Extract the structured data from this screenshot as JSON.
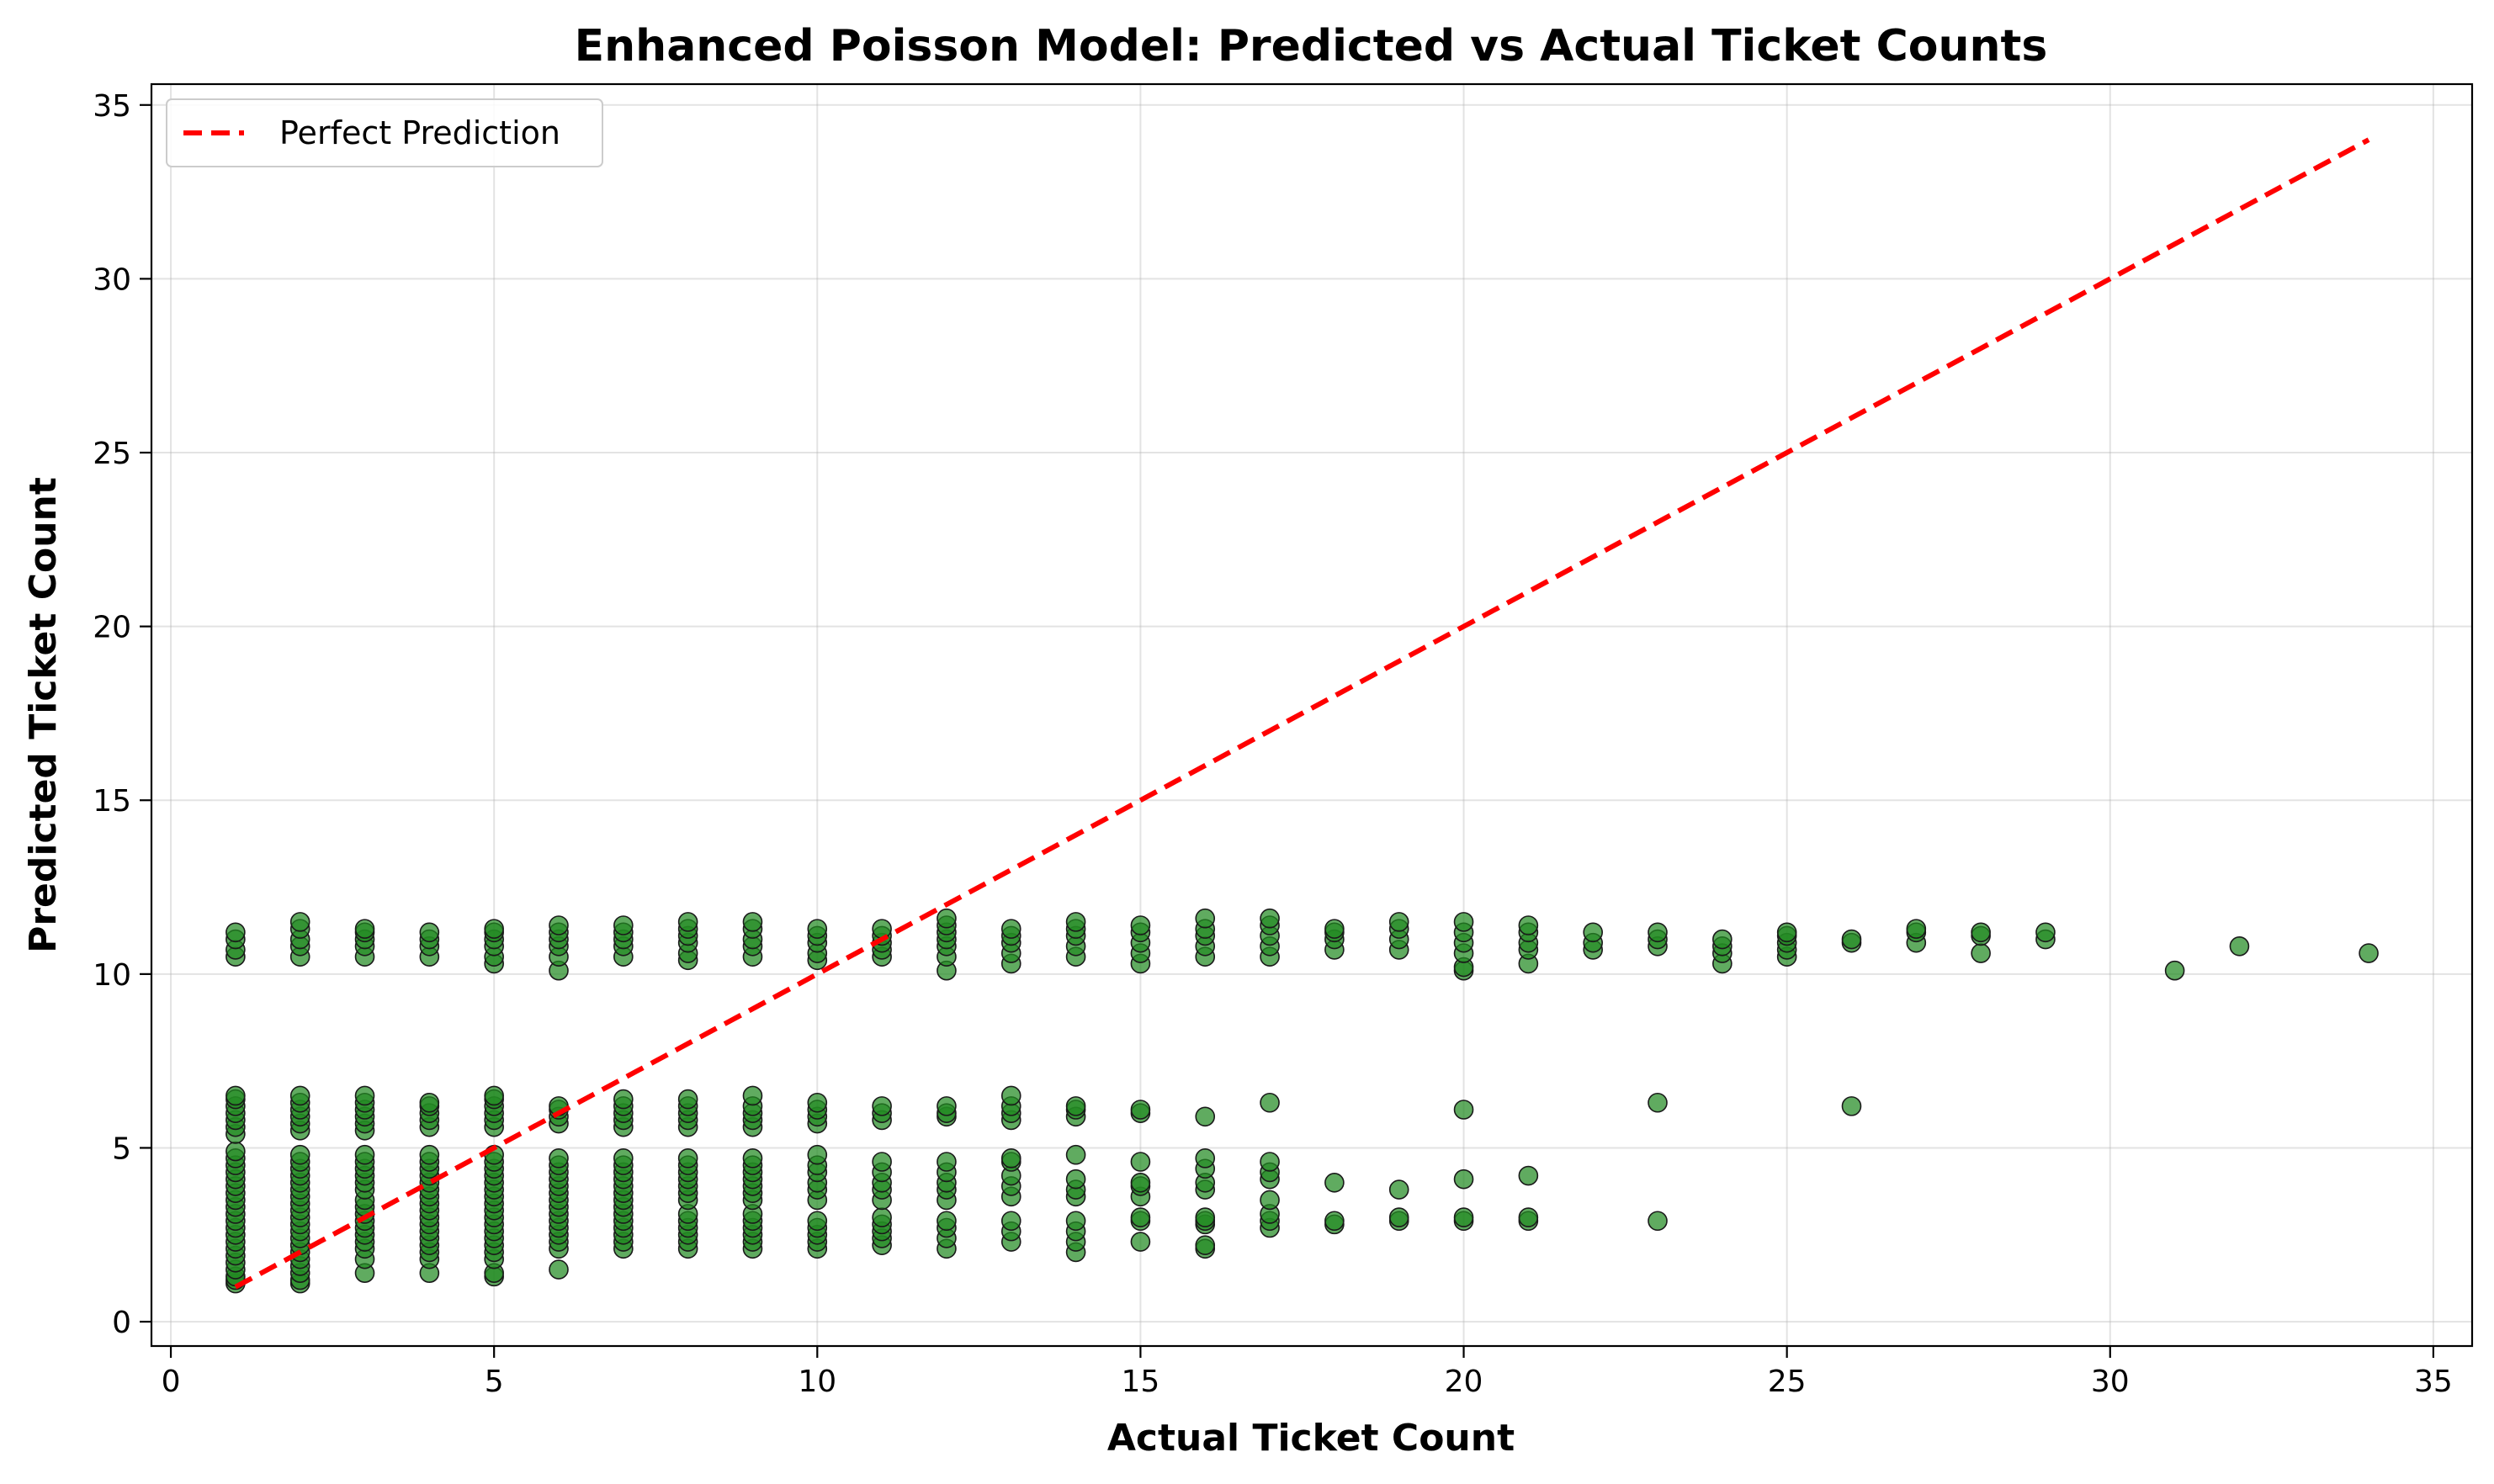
{
  "chart_data": {
    "type": "scatter",
    "title": "Enhanced Poisson Model: Predicted vs Actual Ticket Counts",
    "xlabel": "Actual Ticket Count",
    "ylabel": "Predicted Ticket Count",
    "xlim": [
      -0.3,
      35.6
    ],
    "ylim": [
      -0.7,
      35.6
    ],
    "xticks": [
      0,
      5,
      10,
      15,
      20,
      25,
      30,
      35
    ],
    "yticks": [
      0,
      5,
      10,
      15,
      20,
      25,
      30,
      35
    ],
    "grid": true,
    "legend_position": "top-left",
    "series": [
      {
        "name": "Perfect Prediction",
        "kind": "line",
        "style": "dashed",
        "color": "#ff0000",
        "x": [
          1,
          34
        ],
        "y": [
          1,
          34
        ]
      },
      {
        "kind": "scatter",
        "color": "#228b22",
        "edge_color": "#1a1a1a",
        "groups": [
          {
            "x": 1,
            "y": [
              1.1,
              1.2,
              1.3,
              1.5,
              1.7,
              1.9,
              2.1,
              2.3,
              2.5,
              2.7,
              2.9,
              3.1,
              3.3,
              3.5,
              3.7,
              3.9,
              4.1,
              4.3,
              4.5,
              4.7,
              4.9,
              5.4,
              5.6,
              5.8,
              6.0,
              6.2,
              6.4,
              6.5,
              10.5,
              10.7,
              11.0,
              11.2
            ]
          },
          {
            "x": 2,
            "y": [
              1.1,
              1.2,
              1.4,
              1.6,
              1.8,
              2.0,
              2.2,
              2.4,
              2.6,
              2.8,
              3.0,
              3.2,
              3.4,
              3.6,
              3.8,
              4.0,
              4.2,
              4.4,
              4.6,
              4.8,
              5.5,
              5.7,
              5.9,
              6.1,
              6.3,
              6.5,
              10.5,
              10.8,
              11.0,
              11.3,
              11.5
            ]
          },
          {
            "x": 3,
            "y": [
              1.4,
              1.8,
              2.1,
              2.3,
              2.5,
              2.7,
              2.9,
              3.1,
              3.3,
              3.5,
              3.8,
              4.0,
              4.2,
              4.4,
              4.6,
              4.8,
              5.5,
              5.7,
              5.9,
              6.1,
              6.3,
              6.5,
              10.5,
              10.8,
              11.0,
              11.2,
              11.3
            ]
          },
          {
            "x": 4,
            "y": [
              1.4,
              1.8,
              2.0,
              2.2,
              2.4,
              2.6,
              2.8,
              3.0,
              3.2,
              3.4,
              3.6,
              3.8,
              4.0,
              4.2,
              4.4,
              4.6,
              4.8,
              5.6,
              5.8,
              6.0,
              6.2,
              6.3,
              10.5,
              10.8,
              11.0,
              11.2
            ]
          },
          {
            "x": 5,
            "y": [
              1.3,
              1.4,
              1.8,
              2.0,
              2.2,
              2.4,
              2.6,
              2.8,
              3.0,
              3.2,
              3.4,
              3.6,
              3.8,
              4.0,
              4.2,
              4.4,
              4.6,
              4.8,
              5.6,
              5.8,
              6.0,
              6.2,
              6.4,
              6.5,
              10.3,
              10.5,
              10.8,
              11.0,
              11.2,
              11.3
            ]
          },
          {
            "x": 6,
            "y": [
              1.5,
              2.1,
              2.3,
              2.5,
              2.7,
              2.9,
              3.1,
              3.3,
              3.5,
              3.7,
              3.9,
              4.1,
              4.3,
              4.5,
              4.7,
              5.7,
              5.9,
              6.1,
              6.2,
              10.1,
              10.5,
              10.8,
              11.0,
              11.2,
              11.4
            ]
          },
          {
            "x": 7,
            "y": [
              2.1,
              2.3,
              2.5,
              2.7,
              2.9,
              3.1,
              3.3,
              3.5,
              3.7,
              3.9,
              4.1,
              4.3,
              4.5,
              4.7,
              5.6,
              5.8,
              6.0,
              6.2,
              6.4,
              10.5,
              10.8,
              11.0,
              11.2,
              11.4
            ]
          },
          {
            "x": 8,
            "y": [
              2.1,
              2.3,
              2.5,
              2.7,
              2.9,
              3.1,
              3.5,
              3.7,
              3.9,
              4.1,
              4.3,
              4.5,
              4.7,
              5.6,
              5.8,
              6.0,
              6.2,
              6.4,
              10.4,
              10.6,
              10.9,
              11.1,
              11.3,
              11.5
            ]
          },
          {
            "x": 9,
            "y": [
              2.1,
              2.3,
              2.5,
              2.7,
              2.9,
              3.1,
              3.5,
              3.7,
              3.9,
              4.1,
              4.3,
              4.5,
              4.7,
              5.6,
              5.8,
              6.0,
              6.2,
              6.5,
              10.5,
              10.8,
              11.0,
              11.3,
              11.5
            ]
          },
          {
            "x": 10,
            "y": [
              2.1,
              2.3,
              2.5,
              2.7,
              2.9,
              3.5,
              3.8,
              4.0,
              4.3,
              4.5,
              4.8,
              5.7,
              5.9,
              6.1,
              6.3,
              10.4,
              10.6,
              10.9,
              11.1,
              11.3
            ]
          },
          {
            "x": 11,
            "y": [
              2.2,
              2.4,
              2.6,
              2.8,
              3.0,
              3.5,
              3.8,
              4.0,
              4.3,
              4.6,
              5.8,
              6.0,
              6.2,
              10.5,
              10.7,
              10.9,
              11.1,
              11.3
            ]
          },
          {
            "x": 12,
            "y": [
              2.1,
              2.4,
              2.7,
              2.9,
              3.5,
              3.8,
              4.0,
              4.3,
              4.6,
              5.9,
              6.0,
              6.2,
              10.1,
              10.5,
              10.8,
              11.0,
              11.2,
              11.4,
              11.6
            ]
          },
          {
            "x": 13,
            "y": [
              2.3,
              2.6,
              2.9,
              3.6,
              3.9,
              4.2,
              4.6,
              4.7,
              5.8,
              6.0,
              6.2,
              6.5,
              10.3,
              10.6,
              10.9,
              11.1,
              11.3
            ]
          },
          {
            "x": 14,
            "y": [
              2.0,
              2.3,
              2.6,
              2.9,
              3.6,
              3.8,
              4.1,
              4.8,
              5.9,
              6.1,
              6.2,
              10.5,
              10.8,
              11.1,
              11.3,
              11.5
            ]
          },
          {
            "x": 15,
            "y": [
              2.3,
              2.9,
              3.0,
              3.6,
              3.9,
              4.0,
              4.6,
              6.0,
              6.1,
              10.3,
              10.6,
              10.9,
              11.2,
              11.4
            ]
          },
          {
            "x": 16,
            "y": [
              2.1,
              2.2,
              2.8,
              2.9,
              3.0,
              3.8,
              4.0,
              4.4,
              4.7,
              5.9,
              10.5,
              10.8,
              11.1,
              11.3,
              11.6
            ]
          },
          {
            "x": 17,
            "y": [
              2.7,
              2.9,
              3.1,
              3.5,
              4.1,
              4.3,
              4.6,
              6.3,
              10.5,
              10.8,
              11.1,
              11.4,
              11.6
            ]
          },
          {
            "x": 18,
            "y": [
              2.8,
              2.9,
              4.0,
              10.7,
              11.0,
              11.2,
              11.3
            ]
          },
          {
            "x": 19,
            "y": [
              2.9,
              3.0,
              3.8,
              10.7,
              11.0,
              11.3,
              11.5
            ]
          },
          {
            "x": 20,
            "y": [
              2.9,
              3.0,
              4.1,
              6.1,
              10.1,
              10.2,
              10.6,
              10.9,
              11.2,
              11.5
            ]
          },
          {
            "x": 21,
            "y": [
              2.9,
              3.0,
              4.2,
              10.3,
              10.7,
              10.9,
              11.2,
              11.4
            ]
          },
          {
            "x": 22,
            "y": [
              10.7,
              10.9,
              11.2
            ]
          },
          {
            "x": 23,
            "y": [
              2.9,
              6.3,
              10.8,
              11.0,
              11.2
            ]
          },
          {
            "x": 24,
            "y": [
              10.3,
              10.6,
              10.8,
              11.0
            ]
          },
          {
            "x": 25,
            "y": [
              10.5,
              10.7,
              10.9,
              11.1,
              11.2
            ]
          },
          {
            "x": 26,
            "y": [
              6.2,
              10.9,
              11.0
            ]
          },
          {
            "x": 27,
            "y": [
              10.9,
              11.2,
              11.3
            ]
          },
          {
            "x": 28,
            "y": [
              10.6,
              11.1,
              11.2
            ]
          },
          {
            "x": 29,
            "y": [
              11.0,
              11.2
            ]
          },
          {
            "x": 31,
            "y": [
              10.1
            ]
          },
          {
            "x": 32,
            "y": [
              10.8
            ]
          },
          {
            "x": 34,
            "y": [
              10.6
            ]
          }
        ]
      }
    ]
  }
}
